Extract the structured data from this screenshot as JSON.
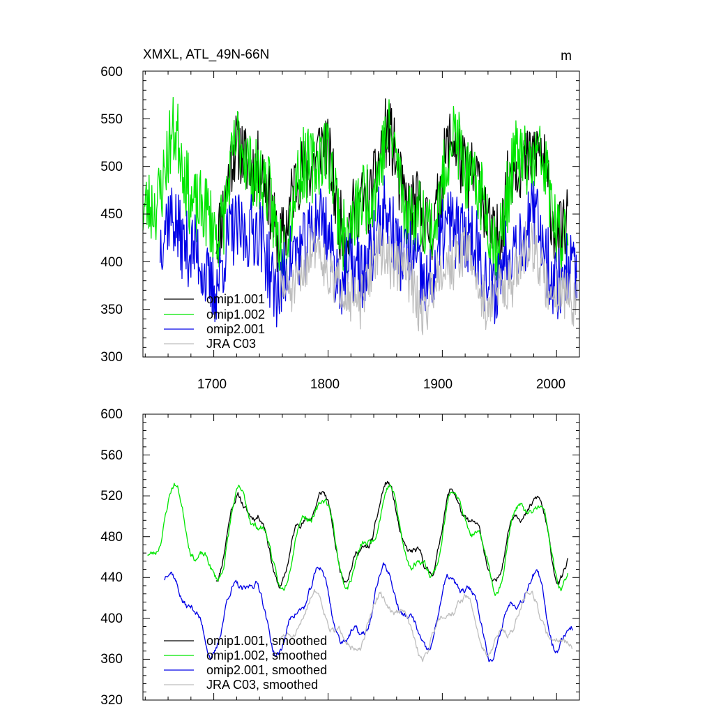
{
  "chart_data": [
    {
      "type": "line",
      "title": "XMXL, ATL_49N-66N",
      "unit_label": "m",
      "xlim": [
        1638,
        2020
      ],
      "ylim": [
        300,
        600
      ],
      "y_ticks": [
        "300",
        "350",
        "400",
        "450",
        "500",
        "550",
        "600"
      ],
      "x_ticks": [
        "1700",
        "1800",
        "1900",
        "2000"
      ],
      "legend": [
        "omip1.001",
        "omip1.002",
        "omip2.001",
        "JRA C03"
      ],
      "series": [
        {
          "name": "omip1.001",
          "color": "#000000",
          "x_start": 1702,
          "x_end": 2010,
          "base": 478,
          "amp": 48,
          "noise": 38,
          "seed": 11
        },
        {
          "name": "omip1.002",
          "color": "#00e600",
          "x_start": 1638,
          "x_end": 2010,
          "base": 476,
          "amp": 50,
          "noise": 40,
          "seed": 23
        },
        {
          "name": "omip2.001",
          "color": "#0000e6",
          "x_start": 1653,
          "x_end": 2018,
          "base": 410,
          "amp": 35,
          "noise": 40,
          "seed": 37
        },
        {
          "name": "JRA C03",
          "color": "#bebebe",
          "x_start": 1758,
          "x_end": 2018,
          "base": 385,
          "amp": 30,
          "noise": 28,
          "seed": 51
        }
      ]
    },
    {
      "type": "line",
      "title": "",
      "xlim": [
        1638,
        2020
      ],
      "ylim": [
        320,
        600
      ],
      "y_ticks": [
        "320",
        "360",
        "400",
        "440",
        "480",
        "520",
        "560",
        "600"
      ],
      "legend": [
        "omip1.001, smoothed",
        "omip1.002, smoothed",
        "omip2.001, smoothed",
        "JRA C03, smoothed"
      ],
      "series": [
        {
          "name": "omip1.001, smoothed",
          "color": "#000000",
          "x_start": 1702,
          "x_end": 2010,
          "base": 482,
          "amp": 42,
          "noise": 8,
          "seed": 11
        },
        {
          "name": "omip1.002, smoothed",
          "color": "#00e600",
          "x_start": 1642,
          "x_end": 2010,
          "base": 479,
          "amp": 44,
          "noise": 8,
          "seed": 23
        },
        {
          "name": "omip2.001, smoothed",
          "color": "#0000e6",
          "x_start": 1657,
          "x_end": 2014,
          "base": 407,
          "amp": 38,
          "noise": 8,
          "seed": 37
        },
        {
          "name": "JRA C03, smoothed",
          "color": "#bebebe",
          "x_start": 1758,
          "x_end": 2014,
          "base": 395,
          "amp": 28,
          "noise": 8,
          "seed": 51
        }
      ]
    }
  ]
}
